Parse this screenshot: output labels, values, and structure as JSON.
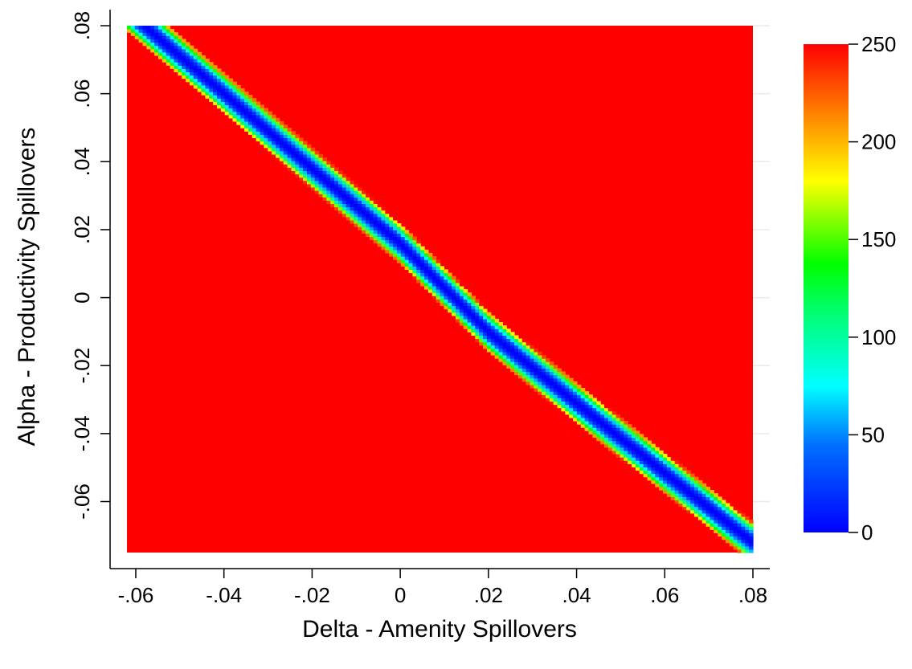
{
  "chart_data": {
    "type": "heatmap",
    "xlabel": "Delta - Amenity Spillovers",
    "ylabel": "Alpha - Productivity Spillovers",
    "xlim": [
      -0.062,
      0.08
    ],
    "ylim": [
      -0.075,
      0.08
    ],
    "x_ticks": [
      -0.06,
      -0.04,
      -0.02,
      0,
      0.02,
      0.04,
      0.06,
      0.08
    ],
    "x_tick_labels": [
      "-.06",
      "-.04",
      "-.02",
      "0",
      ".02",
      ".04",
      ".06",
      ".08"
    ],
    "y_ticks": [
      -0.06,
      -0.04,
      -0.02,
      0,
      0.02,
      0.04,
      0.06,
      0.08
    ],
    "y_tick_labels": [
      "-.06",
      "-.04",
      "-.02",
      "0",
      ".02",
      ".04",
      ".06",
      ".08"
    ],
    "grid": true,
    "colorbar": {
      "range": [
        0,
        250
      ],
      "ticks": [
        0,
        50,
        100,
        150,
        200,
        250
      ],
      "tick_labels": [
        "0",
        "50",
        "100",
        "150",
        "200",
        "250"
      ],
      "colormap": "jet",
      "placement": "right"
    },
    "surface": {
      "description_of_values": "z is minimal along the line alpha + delta ≈ 0.005 and rises to the 250 cap away from it",
      "valley_line": [
        [
          -0.058,
          0.08
        ],
        [
          0.0,
          0.016
        ],
        [
          0.02,
          -0.01
        ],
        [
          0.04,
          -0.031
        ],
        [
          0.08,
          -0.072
        ]
      ],
      "valley_min_value": 0,
      "cap_value": 250
    }
  }
}
